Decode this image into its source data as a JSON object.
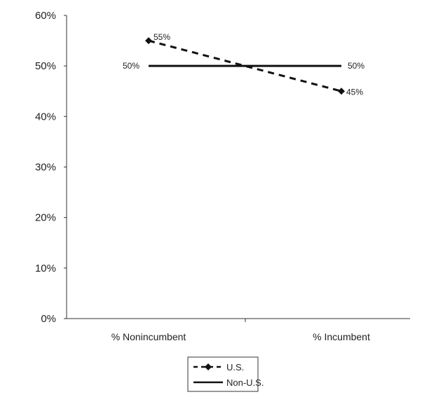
{
  "chart_data": {
    "type": "line",
    "title": "",
    "xlabel": "",
    "ylabel": "",
    "categories": [
      "% Nonincumbent",
      "% Incumbent"
    ],
    "ylim": [
      0,
      60
    ],
    "yticks": [
      "0%",
      "10%",
      "20%",
      "30%",
      "40%",
      "50%",
      "60%"
    ],
    "grid": false,
    "legend_position": "bottom",
    "series": [
      {
        "name": "U.S.",
        "values": [
          55,
          45
        ],
        "labels": [
          "55%",
          "45%"
        ],
        "line_style": "dashed",
        "marker": "diamond",
        "color": "#111111"
      },
      {
        "name": "Non-U.S.",
        "values": [
          50,
          50
        ],
        "labels": [
          "50%",
          "50%"
        ],
        "line_style": "solid",
        "marker": "none",
        "color": "#111111"
      }
    ]
  }
}
